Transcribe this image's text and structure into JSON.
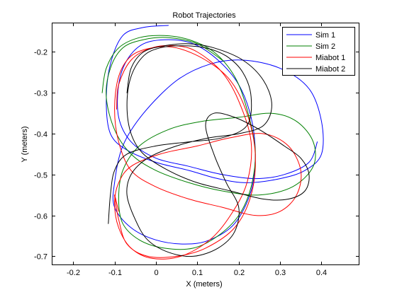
{
  "chart_data": {
    "type": "line",
    "title": "Robot Trajectories",
    "xlabel": "X (meters)",
    "ylabel": "Y (meters)",
    "xlim": [
      -0.25,
      0.49
    ],
    "ylim": [
      -0.72,
      -0.13
    ],
    "xticks": [
      -0.2,
      -0.1,
      0,
      0.1,
      0.2,
      0.3,
      0.4
    ],
    "xtick_labels": [
      "-0.2",
      "-0.1",
      "0",
      "0.1",
      "0.2",
      "0.3",
      "0.4"
    ],
    "yticks": [
      -0.2,
      -0.3,
      -0.4,
      -0.5,
      -0.6,
      -0.7
    ],
    "ytick_labels": [
      "-0.2",
      "-0.3",
      "-0.4",
      "-0.5",
      "-0.6",
      "-0.7"
    ],
    "grid": false,
    "legend_position": "top-right",
    "series": [
      {
        "name": "Sim 1",
        "color": "#0000ff",
        "points": [
          [
            0.03,
            -0.135
          ],
          [
            -0.03,
            -0.14
          ],
          [
            -0.08,
            -0.16
          ],
          [
            -0.11,
            -0.23
          ],
          [
            -0.12,
            -0.32
          ],
          [
            -0.11,
            -0.4
          ],
          [
            -0.07,
            -0.44
          ],
          [
            0.0,
            -0.47
          ],
          [
            0.08,
            -0.49
          ],
          [
            0.15,
            -0.51
          ],
          [
            0.22,
            -0.52
          ],
          [
            0.3,
            -0.51
          ],
          [
            0.36,
            -0.49
          ],
          [
            0.4,
            -0.45
          ],
          [
            0.4,
            -0.37
          ],
          [
            0.37,
            -0.29
          ],
          [
            0.3,
            -0.24
          ],
          [
            0.21,
            -0.22
          ],
          [
            0.13,
            -0.23
          ],
          [
            0.05,
            -0.27
          ],
          [
            -0.03,
            -0.35
          ],
          [
            -0.08,
            -0.43
          ],
          [
            -0.1,
            -0.52
          ],
          [
            -0.1,
            -0.58
          ],
          [
            -0.06,
            -0.63
          ],
          [
            0.0,
            -0.66
          ],
          [
            0.07,
            -0.67
          ],
          [
            0.13,
            -0.66
          ],
          [
            0.19,
            -0.62
          ],
          [
            0.23,
            -0.54
          ],
          [
            0.24,
            -0.45
          ],
          [
            0.23,
            -0.36
          ],
          [
            0.2,
            -0.28
          ],
          [
            0.15,
            -0.22
          ],
          [
            0.09,
            -0.18
          ],
          [
            0.03,
            -0.17
          ],
          [
            -0.03,
            -0.18
          ],
          [
            -0.07,
            -0.22
          ],
          [
            -0.09,
            -0.28
          ],
          [
            -0.09,
            -0.36
          ],
          [
            -0.06,
            -0.42
          ],
          [
            0.0,
            -0.46
          ],
          [
            0.08,
            -0.48
          ],
          [
            0.16,
            -0.5
          ],
          [
            0.24,
            -0.51
          ],
          [
            0.31,
            -0.5
          ],
          [
            0.37,
            -0.47
          ],
          [
            0.39,
            -0.42
          ]
        ]
      },
      {
        "name": "Sim 2",
        "color": "#008000",
        "points": [
          [
            -0.13,
            -0.3
          ],
          [
            -0.12,
            -0.24
          ],
          [
            -0.09,
            -0.19
          ],
          [
            -0.04,
            -0.165
          ],
          [
            0.02,
            -0.16
          ],
          [
            0.08,
            -0.17
          ],
          [
            0.14,
            -0.2
          ],
          [
            0.19,
            -0.26
          ],
          [
            0.22,
            -0.34
          ],
          [
            0.24,
            -0.44
          ],
          [
            0.23,
            -0.53
          ],
          [
            0.2,
            -0.6
          ],
          [
            0.15,
            -0.65
          ],
          [
            0.09,
            -0.68
          ],
          [
            0.02,
            -0.68
          ],
          [
            -0.04,
            -0.66
          ],
          [
            -0.08,
            -0.62
          ],
          [
            -0.09,
            -0.56
          ],
          [
            -0.08,
            -0.49
          ],
          [
            -0.04,
            -0.43
          ],
          [
            0.03,
            -0.39
          ],
          [
            0.11,
            -0.37
          ],
          [
            0.2,
            -0.36
          ],
          [
            0.28,
            -0.35
          ],
          [
            0.34,
            -0.37
          ],
          [
            0.38,
            -0.42
          ],
          [
            0.38,
            -0.48
          ],
          [
            0.33,
            -0.53
          ],
          [
            0.25,
            -0.55
          ],
          [
            0.16,
            -0.54
          ],
          [
            0.08,
            -0.52
          ],
          [
            0.0,
            -0.49
          ],
          [
            -0.06,
            -0.45
          ],
          [
            -0.1,
            -0.39
          ],
          [
            -0.12,
            -0.31
          ],
          [
            -0.11,
            -0.24
          ],
          [
            -0.08,
            -0.19
          ],
          [
            -0.03,
            -0.17
          ],
          [
            0.03,
            -0.165
          ],
          [
            0.1,
            -0.18
          ],
          [
            0.16,
            -0.22
          ]
        ]
      },
      {
        "name": "Miabot 1",
        "color": "#ff0000",
        "points": [
          [
            -0.095,
            -0.34
          ],
          [
            -0.09,
            -0.28
          ],
          [
            -0.06,
            -0.22
          ],
          [
            -0.01,
            -0.19
          ],
          [
            0.05,
            -0.185
          ],
          [
            0.1,
            -0.2
          ],
          [
            0.16,
            -0.25
          ],
          [
            0.2,
            -0.32
          ],
          [
            0.23,
            -0.42
          ],
          [
            0.22,
            -0.52
          ],
          [
            0.18,
            -0.6
          ],
          [
            0.13,
            -0.66
          ],
          [
            0.06,
            -0.7
          ],
          [
            -0.01,
            -0.705
          ],
          [
            -0.06,
            -0.68
          ],
          [
            -0.09,
            -0.63
          ],
          [
            -0.1,
            -0.57
          ],
          [
            -0.09,
            -0.52
          ],
          [
            -0.06,
            -0.48
          ],
          [
            0.01,
            -0.45
          ],
          [
            0.1,
            -0.43
          ],
          [
            0.18,
            -0.41
          ],
          [
            0.26,
            -0.4
          ],
          [
            0.32,
            -0.43
          ],
          [
            0.35,
            -0.49
          ],
          [
            0.34,
            -0.55
          ],
          [
            0.3,
            -0.59
          ],
          [
            0.24,
            -0.6
          ],
          [
            0.16,
            -0.58
          ],
          [
            0.08,
            -0.56
          ],
          [
            0.0,
            -0.53
          ],
          [
            -0.06,
            -0.49
          ],
          [
            -0.09,
            -0.42
          ],
          [
            -0.1,
            -0.34
          ],
          [
            -0.09,
            -0.26
          ],
          [
            -0.06,
            -0.21
          ],
          [
            -0.01,
            -0.19
          ],
          [
            0.05,
            -0.19
          ],
          [
            0.12,
            -0.22
          ],
          [
            0.18,
            -0.27
          ],
          [
            0.22,
            -0.35
          ],
          [
            0.24,
            -0.45
          ],
          [
            0.23,
            -0.55
          ],
          [
            0.19,
            -0.63
          ],
          [
            0.12,
            -0.68
          ],
          [
            0.05,
            -0.7
          ],
          [
            -0.02,
            -0.7
          ],
          [
            -0.07,
            -0.67
          ],
          [
            -0.09,
            -0.61
          ],
          [
            -0.1,
            -0.55
          ],
          [
            -0.09,
            -0.59
          ]
        ]
      },
      {
        "name": "Miabot 2",
        "color": "#000000",
        "points": [
          [
            -0.115,
            -0.62
          ],
          [
            -0.11,
            -0.55
          ],
          [
            -0.1,
            -0.49
          ],
          [
            -0.07,
            -0.45
          ],
          [
            0.0,
            -0.43
          ],
          [
            0.08,
            -0.42
          ],
          [
            0.16,
            -0.41
          ],
          [
            0.22,
            -0.38
          ],
          [
            0.23,
            -0.31
          ],
          [
            0.21,
            -0.25
          ],
          [
            0.17,
            -0.21
          ],
          [
            0.12,
            -0.19
          ],
          [
            0.06,
            -0.185
          ],
          [
            0.01,
            -0.19
          ],
          [
            -0.03,
            -0.21
          ],
          [
            -0.06,
            -0.26
          ],
          [
            -0.07,
            -0.33
          ],
          [
            -0.06,
            -0.4
          ],
          [
            -0.03,
            -0.45
          ],
          [
            0.03,
            -0.49
          ],
          [
            0.1,
            -0.52
          ],
          [
            0.18,
            -0.54
          ],
          [
            0.26,
            -0.56
          ],
          [
            0.32,
            -0.56
          ],
          [
            0.36,
            -0.54
          ],
          [
            0.37,
            -0.5
          ],
          [
            0.35,
            -0.46
          ],
          [
            0.31,
            -0.43
          ],
          [
            0.25,
            -0.39
          ],
          [
            0.19,
            -0.36
          ],
          [
            0.14,
            -0.35
          ],
          [
            0.12,
            -0.38
          ],
          [
            0.14,
            -0.45
          ],
          [
            0.17,
            -0.52
          ],
          [
            0.2,
            -0.58
          ],
          [
            0.19,
            -0.64
          ],
          [
            0.15,
            -0.68
          ],
          [
            0.09,
            -0.7
          ],
          [
            0.03,
            -0.69
          ],
          [
            -0.02,
            -0.66
          ],
          [
            -0.05,
            -0.61
          ],
          [
            -0.07,
            -0.55
          ],
          [
            -0.06,
            -0.5
          ],
          [
            -0.02,
            -0.46
          ],
          [
            0.05,
            -0.43
          ],
          [
            0.13,
            -0.41
          ],
          [
            0.2,
            -0.4
          ],
          [
            0.26,
            -0.38
          ],
          [
            0.28,
            -0.33
          ],
          [
            0.26,
            -0.27
          ],
          [
            0.21,
            -0.22
          ],
          [
            0.14,
            -0.19
          ],
          [
            0.08,
            -0.18
          ],
          [
            0.02,
            -0.185
          ],
          [
            -0.03,
            -0.2
          ],
          [
            -0.06,
            -0.24
          ],
          [
            -0.07,
            -0.3
          ]
        ]
      }
    ]
  }
}
